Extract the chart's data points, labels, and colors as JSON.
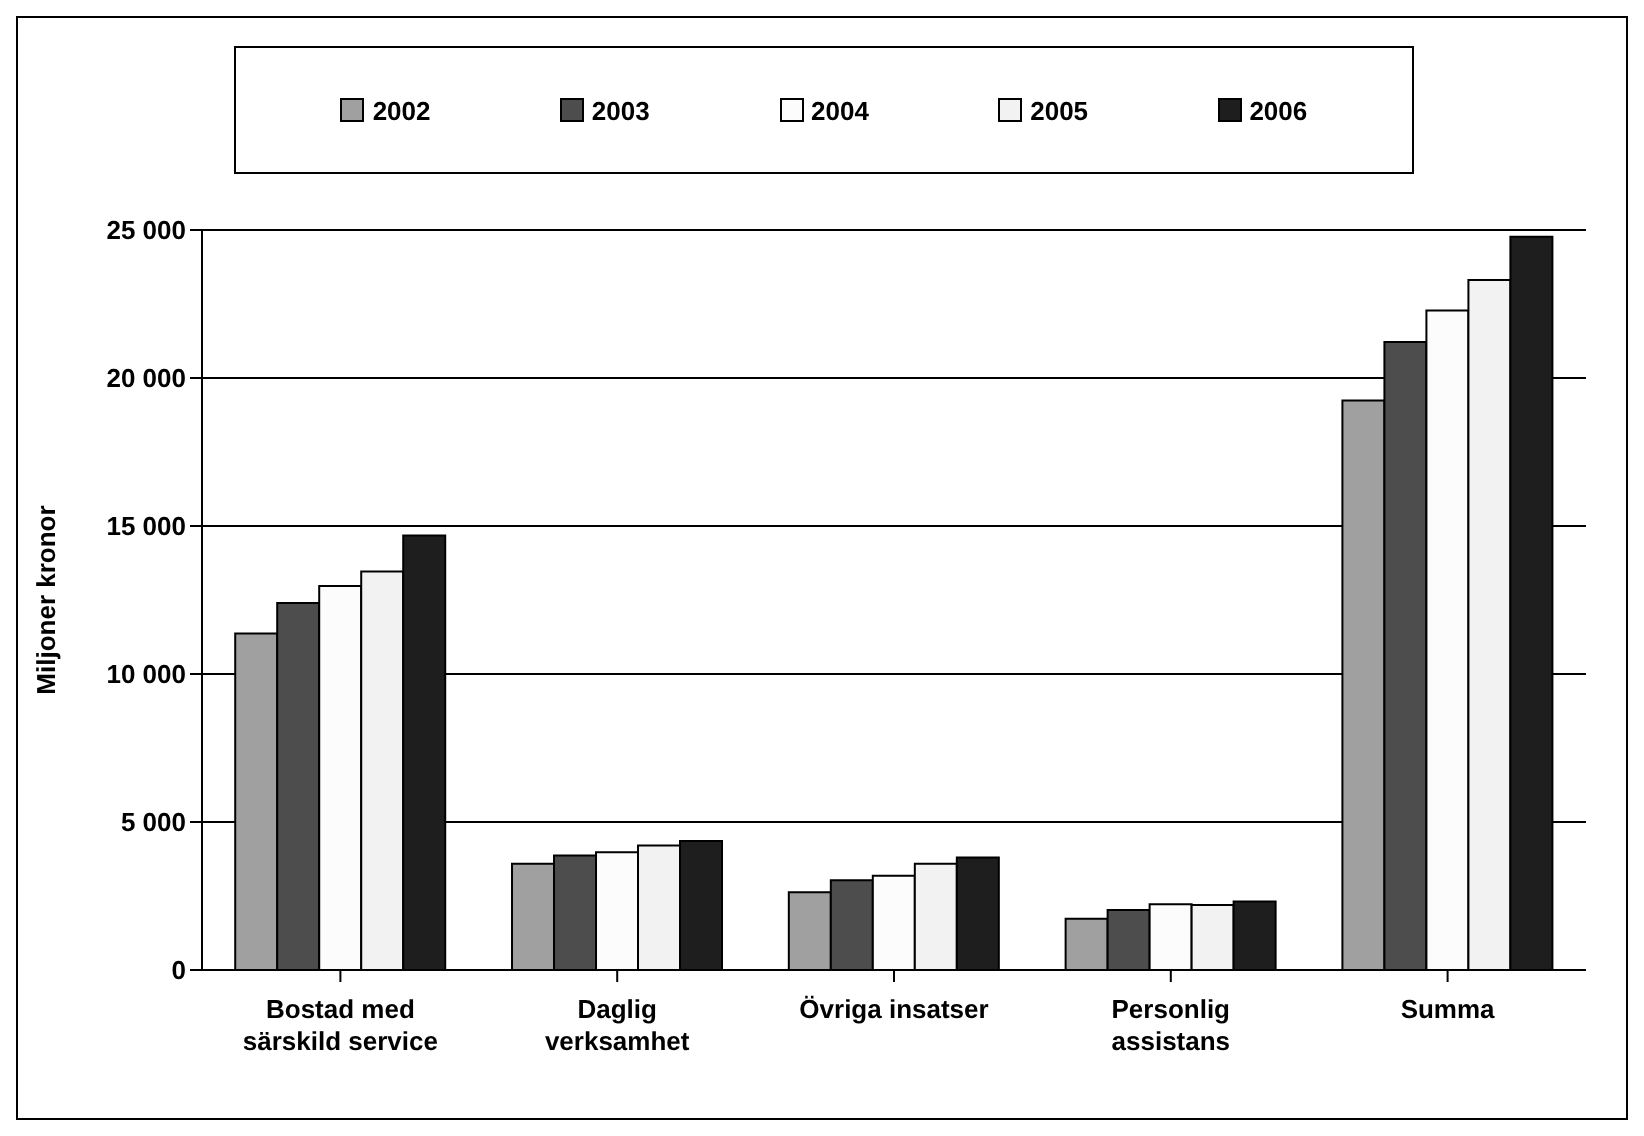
{
  "chart_data": {
    "type": "bar",
    "ylabel": "Miljoner kronor",
    "categories": [
      "Bostad med särskild service",
      "Daglig verksamhet",
      "Övriga insatser",
      "Personlig assistans",
      "Summa"
    ],
    "series": [
      {
        "name": "2002",
        "color": "#a0a0a0",
        "values": [
          11370,
          3590,
          2630,
          1730,
          19240
        ]
      },
      {
        "name": "2003",
        "color": "#4d4d4d",
        "values": [
          12400,
          3870,
          3030,
          2030,
          21220
        ]
      },
      {
        "name": "2004",
        "color": "#fcfcfc",
        "values": [
          12970,
          3980,
          3180,
          2220,
          22280
        ]
      },
      {
        "name": "2005",
        "color": "#f2f2f2",
        "values": [
          13460,
          4210,
          3590,
          2200,
          23310
        ]
      },
      {
        "name": "2006",
        "color": "#1e1e1e",
        "values": [
          14680,
          4360,
          3800,
          2310,
          24770
        ]
      }
    ],
    "ylim": [
      0,
      25000
    ],
    "yticks": [
      {
        "value": 0,
        "label": "0"
      },
      {
        "value": 5000,
        "label": "5 000"
      },
      {
        "value": 10000,
        "label": "10 000"
      },
      {
        "value": 15000,
        "label": "15 000"
      },
      {
        "value": 20000,
        "label": "20 000"
      },
      {
        "value": 25000,
        "label": "25 000"
      }
    ],
    "grid": "y",
    "legend": "top"
  }
}
